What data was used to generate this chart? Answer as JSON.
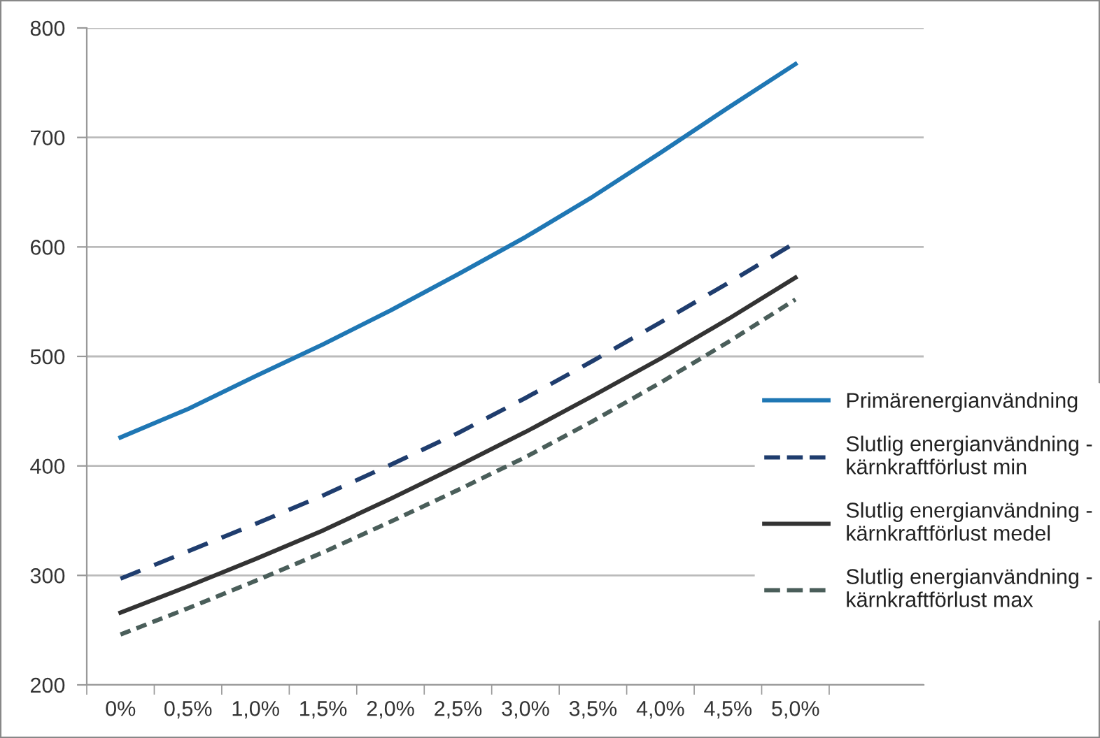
{
  "chart_data": {
    "type": "line",
    "categories": [
      "0%",
      "0,5%",
      "1,0%",
      "1,5%",
      "2,0%",
      "2,5%",
      "3,0%",
      "3,5%",
      "4,0%",
      "4,5%",
      "5,0%"
    ],
    "series": [
      {
        "name": "Primärenergianvändning",
        "color": "#1f77b4",
        "line_style": "solid",
        "values": [
          426,
          452,
          482,
          511,
          542,
          575,
          609,
          646,
          686,
          727,
          767
        ]
      },
      {
        "name": "Slutlig energianvändning - kärnkraftförlust min",
        "color": "#1f3d6e",
        "line_style": "dashed",
        "values": [
          297,
          322,
          347,
          373,
          401,
          430,
          462,
          496,
          531,
          567,
          604
        ]
      },
      {
        "name": "Slutlig energianvändning - kärnkraftförlust medel",
        "color": "#333333",
        "line_style": "solid",
        "values": [
          266,
          290,
          315,
          341,
          370,
          400,
          431,
          464,
          498,
          534,
          572
        ]
      },
      {
        "name": "Slutlig energianvändning - kärnkraftförlust max",
        "color": "#4a5e5a",
        "line_style": "dotted",
        "values": [
          246,
          270,
          295,
          321,
          349,
          378,
          408,
          441,
          476,
          513,
          552
        ]
      }
    ],
    "ylim": [
      200,
      800
    ],
    "yticks": [
      200,
      300,
      400,
      500,
      600,
      700,
      800
    ],
    "grid": "y",
    "legend": "right",
    "marker": "none"
  }
}
